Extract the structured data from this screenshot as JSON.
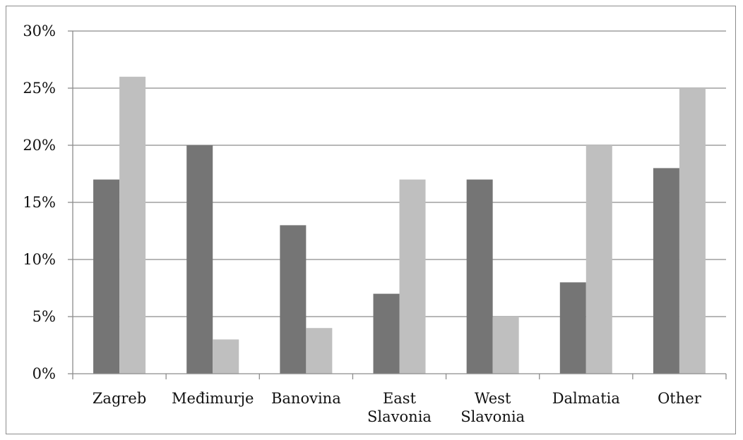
{
  "chart_data": {
    "type": "bar",
    "title": "",
    "xlabel": "",
    "ylabel": "",
    "ylim": [
      0,
      30
    ],
    "y_ticks": [
      "0%",
      "5%",
      "10%",
      "15%",
      "20%",
      "25%",
      "30%"
    ],
    "categories": [
      [
        "Zagreb"
      ],
      [
        "Međimurje"
      ],
      [
        "Banovina"
      ],
      [
        "East",
        "Slavonia"
      ],
      [
        "West",
        "Slavonia"
      ],
      [
        "Dalmatia"
      ],
      [
        "Other"
      ]
    ],
    "series": [
      {
        "values": [
          17,
          20,
          13,
          7,
          17,
          8,
          18
        ],
        "color": "#757575"
      },
      {
        "values": [
          26,
          3,
          4,
          17,
          5,
          20,
          25
        ],
        "color": "#bfbfbf"
      }
    ],
    "grid": true,
    "legend": "none"
  }
}
